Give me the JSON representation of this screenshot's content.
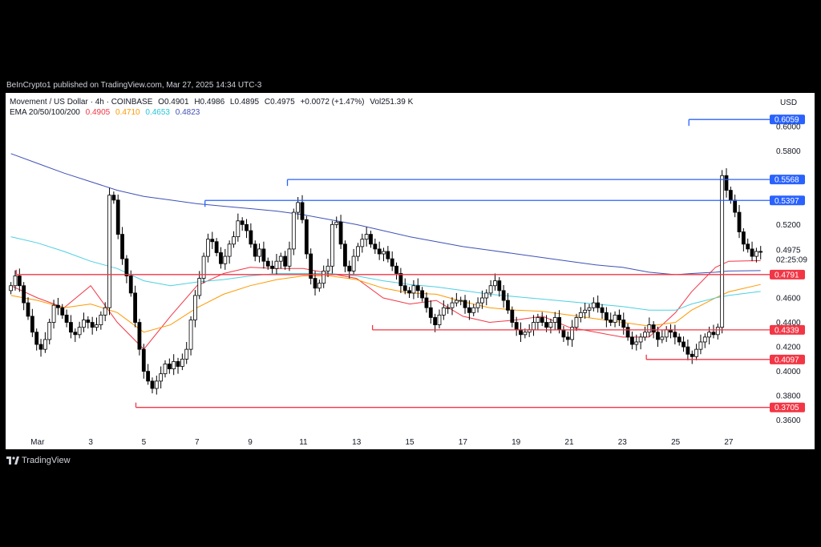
{
  "publisher_line": "BeInCrypto1 published on TradingView.com, Mar 27, 2025 14:34 UTC-3",
  "legend": {
    "symbol": "Movement / US Dollar · 4h · COINBASE",
    "open": "O0.4901",
    "high": "H0.4986",
    "low": "L0.4895",
    "close": "C0.4975",
    "change": "+0.0072 (+1.47%)",
    "volume": "Vol251.39 K",
    "ema_label": "EMA 20/50/100/200",
    "ema_values": [
      "0.4905",
      "0.4710",
      "0.4653",
      "0.4823"
    ]
  },
  "currency": "USD",
  "footer": "TradingView",
  "colors": {
    "up": "#ffffff",
    "down": "#000000",
    "ema20": "#f23645",
    "ema50": "#ff9800",
    "ema100": "#4dd0e1",
    "ema200": "#3f51b5",
    "resistance": "#2962ff",
    "support": "#f23645"
  },
  "chart_data": {
    "type": "candlestick",
    "ylim": [
      0.35,
      0.625
    ],
    "y_ticks": [
      "0.6000",
      "0.5800",
      "0.5200",
      "0.4600",
      "0.4400",
      "0.4200",
      "0.4000",
      "0.3800",
      "0.3600"
    ],
    "x_ticks": [
      "Mar",
      "3",
      "5",
      "7",
      "9",
      "11",
      "13",
      "15",
      "17",
      "19",
      "21",
      "23",
      "25",
      "27"
    ],
    "x_tick_days": [
      1,
      3,
      5,
      7,
      9,
      11,
      13,
      15,
      17,
      19,
      21,
      23,
      25,
      27
    ],
    "x_range_days": [
      -0.2,
      28.6
    ],
    "last_price": "0.4975",
    "countdown": "02:25:09",
    "resistance_levels": [
      {
        "label": "0.6059",
        "value": 0.6059,
        "from_day": 25.5
      },
      {
        "label": "0.5568",
        "value": 0.5568,
        "from_day": 10.4
      },
      {
        "label": "0.5397",
        "value": 0.5397,
        "from_day": 7.3
      }
    ],
    "support_levels": [
      {
        "label": "0.4791",
        "value": 0.4791,
        "from_day": 0.2
      },
      {
        "label": "0.4339",
        "value": 0.4339,
        "from_day": 13.6
      },
      {
        "label": "0.4097",
        "value": 0.4097,
        "from_day": 23.9
      },
      {
        "label": "0.3705",
        "value": 0.3705,
        "from_day": 4.7
      }
    ],
    "ema_series": [
      {
        "name": "EMA 20",
        "color": "#f23645",
        "points": [
          [
            0,
            0.47
          ],
          [
            1,
            0.46
          ],
          [
            2,
            0.452
          ],
          [
            3,
            0.47
          ],
          [
            4,
            0.44
          ],
          [
            5,
            0.418
          ],
          [
            6,
            0.445
          ],
          [
            7,
            0.47
          ],
          [
            8,
            0.48
          ],
          [
            9,
            0.485
          ],
          [
            10,
            0.484
          ],
          [
            11,
            0.484
          ],
          [
            12,
            0.48
          ],
          [
            13,
            0.476
          ],
          [
            14,
            0.46
          ],
          [
            15,
            0.455
          ],
          [
            16,
            0.458
          ],
          [
            17,
            0.445
          ],
          [
            18,
            0.44
          ],
          [
            19,
            0.442
          ],
          [
            20,
            0.445
          ],
          [
            21,
            0.436
          ],
          [
            22,
            0.432
          ],
          [
            23,
            0.428
          ],
          [
            24,
            0.428
          ],
          [
            25,
            0.448
          ],
          [
            25.6,
            0.465
          ],
          [
            26.5,
            0.485
          ],
          [
            27,
            0.49
          ],
          [
            28.2,
            0.4905
          ]
        ]
      },
      {
        "name": "EMA 50",
        "color": "#ff9800",
        "points": [
          [
            0,
            0.462
          ],
          [
            1,
            0.458
          ],
          [
            2,
            0.452
          ],
          [
            3,
            0.455
          ],
          [
            4,
            0.448
          ],
          [
            5,
            0.432
          ],
          [
            6,
            0.438
          ],
          [
            7,
            0.452
          ],
          [
            8,
            0.463
          ],
          [
            9,
            0.47
          ],
          [
            10,
            0.475
          ],
          [
            11,
            0.478
          ],
          [
            12,
            0.478
          ],
          [
            13,
            0.475
          ],
          [
            14,
            0.468
          ],
          [
            15,
            0.464
          ],
          [
            16,
            0.463
          ],
          [
            17,
            0.457
          ],
          [
            18,
            0.452
          ],
          [
            19,
            0.45
          ],
          [
            20,
            0.449
          ],
          [
            21,
            0.446
          ],
          [
            22,
            0.443
          ],
          [
            23,
            0.44
          ],
          [
            24,
            0.437
          ],
          [
            25,
            0.44
          ],
          [
            25.6,
            0.45
          ],
          [
            26.5,
            0.46
          ],
          [
            27,
            0.465
          ],
          [
            28.2,
            0.471
          ]
        ]
      },
      {
        "name": "EMA 100",
        "color": "#4dd0e1",
        "points": [
          [
            0,
            0.51
          ],
          [
            1,
            0.505
          ],
          [
            2,
            0.498
          ],
          [
            3,
            0.49
          ],
          [
            4,
            0.484
          ],
          [
            5,
            0.474
          ],
          [
            6,
            0.47
          ],
          [
            7,
            0.473
          ],
          [
            8,
            0.475
          ],
          [
            9,
            0.478
          ],
          [
            10,
            0.48
          ],
          [
            11,
            0.48
          ],
          [
            12,
            0.48
          ],
          [
            13,
            0.478
          ],
          [
            14,
            0.474
          ],
          [
            15,
            0.471
          ],
          [
            16,
            0.469
          ],
          [
            17,
            0.466
          ],
          [
            18,
            0.463
          ],
          [
            19,
            0.461
          ],
          [
            20,
            0.459
          ],
          [
            21,
            0.457
          ],
          [
            22,
            0.455
          ],
          [
            23,
            0.453
          ],
          [
            24,
            0.45
          ],
          [
            25,
            0.45
          ],
          [
            25.6,
            0.455
          ],
          [
            26.5,
            0.46
          ],
          [
            27,
            0.462
          ],
          [
            28.2,
            0.4653
          ]
        ]
      },
      {
        "name": "EMA 200",
        "color": "#3f51b5",
        "points": [
          [
            0,
            0.578
          ],
          [
            1,
            0.57
          ],
          [
            2,
            0.562
          ],
          [
            3,
            0.555
          ],
          [
            4,
            0.548
          ],
          [
            5,
            0.543
          ],
          [
            6,
            0.54
          ],
          [
            7,
            0.537
          ],
          [
            8,
            0.535
          ],
          [
            9,
            0.533
          ],
          [
            10,
            0.531
          ],
          [
            11,
            0.528
          ],
          [
            12,
            0.524
          ],
          [
            13,
            0.52
          ],
          [
            14,
            0.515
          ],
          [
            15,
            0.51
          ],
          [
            16,
            0.506
          ],
          [
            17,
            0.502
          ],
          [
            18,
            0.499
          ],
          [
            19,
            0.496
          ],
          [
            20,
            0.493
          ],
          [
            21,
            0.49
          ],
          [
            22,
            0.487
          ],
          [
            23,
            0.485
          ],
          [
            24,
            0.481
          ],
          [
            25,
            0.479
          ],
          [
            25.6,
            0.48
          ],
          [
            26.5,
            0.481
          ],
          [
            27,
            0.482
          ],
          [
            28.2,
            0.4823
          ]
        ]
      }
    ],
    "candles_close": [
      0.47,
      0.478,
      0.47,
      0.456,
      0.445,
      0.432,
      0.422,
      0.418,
      0.426,
      0.44,
      0.454,
      0.452,
      0.446,
      0.44,
      0.432,
      0.43,
      0.436,
      0.442,
      0.44,
      0.436,
      0.438,
      0.446,
      0.452,
      0.544,
      0.54,
      0.512,
      0.492,
      0.478,
      0.464,
      0.44,
      0.418,
      0.4,
      0.392,
      0.386,
      0.392,
      0.398,
      0.406,
      0.402,
      0.408,
      0.404,
      0.41,
      0.418,
      0.442,
      0.462,
      0.476,
      0.494,
      0.508,
      0.506,
      0.497,
      0.488,
      0.494,
      0.504,
      0.51,
      0.523,
      0.52,
      0.515,
      0.504,
      0.494,
      0.5,
      0.49,
      0.486,
      0.484,
      0.49,
      0.494,
      0.486,
      0.5,
      0.53,
      0.538,
      0.524,
      0.496,
      0.476,
      0.468,
      0.472,
      0.482,
      0.486,
      0.52,
      0.522,
      0.504,
      0.486,
      0.482,
      0.494,
      0.502,
      0.508,
      0.512,
      0.504,
      0.5,
      0.496,
      0.498,
      0.492,
      0.486,
      0.48,
      0.47,
      0.466,
      0.464,
      0.47,
      0.466,
      0.46,
      0.452,
      0.444,
      0.438,
      0.446,
      0.452,
      0.452,
      0.456,
      0.458,
      0.458,
      0.452,
      0.448,
      0.452,
      0.456,
      0.46,
      0.464,
      0.47,
      0.474,
      0.466,
      0.458,
      0.45,
      0.44,
      0.434,
      0.43,
      0.432,
      0.434,
      0.44,
      0.444,
      0.44,
      0.436,
      0.44,
      0.444,
      0.434,
      0.428,
      0.426,
      0.436,
      0.444,
      0.448,
      0.45,
      0.452,
      0.456,
      0.452,
      0.448,
      0.442,
      0.44,
      0.446,
      0.442,
      0.436,
      0.428,
      0.422,
      0.424,
      0.428,
      0.432,
      0.438,
      0.432,
      0.426,
      0.428,
      0.434,
      0.432,
      0.428,
      0.424,
      0.42,
      0.414,
      0.412,
      0.418,
      0.424,
      0.428,
      0.432,
      0.43,
      0.436,
      0.56,
      0.548,
      0.54,
      0.53,
      0.514,
      0.504,
      0.5,
      0.494,
      0.498,
      0.4975
    ]
  }
}
